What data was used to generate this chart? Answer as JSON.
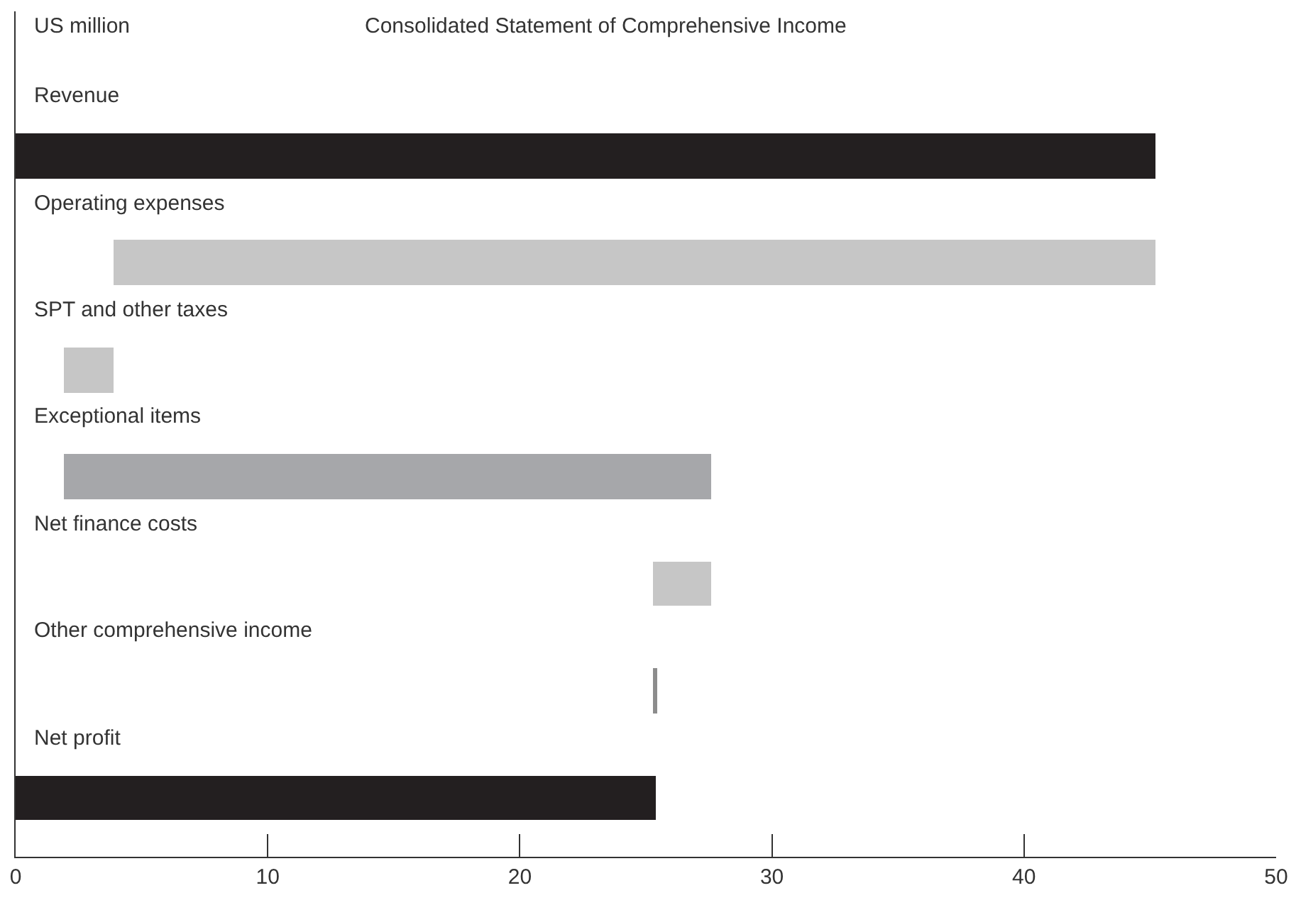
{
  "chart_data": {
    "type": "bar",
    "orientation": "horizontal",
    "title": "Consolidated Statement of Comprehensive Income",
    "xlabel": "US million",
    "categories": [
      "Revenue",
      "Operating expenses",
      "SPT and other taxes",
      "Exceptional items",
      "Net finance costs",
      "Other comprehensive income",
      "Net profit"
    ],
    "values": [
      45.2,
      -41.3,
      -2.0,
      25.7,
      -2.3,
      -0.1,
      25.4
    ],
    "base": [
      0,
      45.2,
      3.9,
      1.9,
      27.6,
      25.4,
      0
    ],
    "colors": [
      "#231f20",
      "#c6c6c6",
      "#c6c6c6",
      "#a6a7aa",
      "#c6c6c6",
      "#8c8c8c",
      "#231f20"
    ],
    "xlim": [
      0,
      50
    ],
    "xticks": [
      0,
      10,
      20,
      30,
      40,
      50
    ],
    "grid": false
  }
}
